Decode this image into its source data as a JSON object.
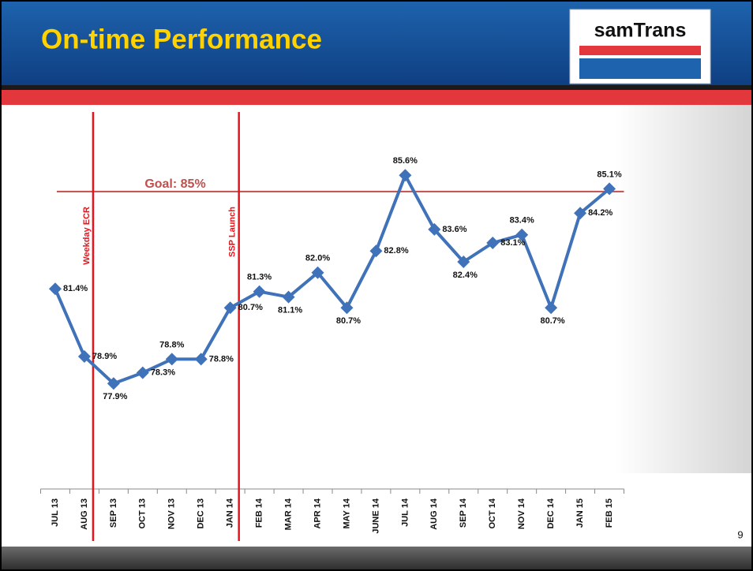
{
  "slide": {
    "logo": "samTrans",
    "page_number": "9"
  },
  "chart_data": {
    "type": "line",
    "title": "On-time Performance",
    "categories": [
      "JUL 13",
      "AUG 13",
      "SEP 13",
      "OCT 13",
      "NOV 13",
      "DEC 13",
      "JAN 14",
      "FEB 14",
      "MAR 14",
      "APR 14",
      "MAY 14",
      "JUNE 14",
      "JUL 14",
      "AUG 14",
      "SEP 14",
      "OCT 14",
      "NOV 14",
      "DEC 14",
      "JAN 15",
      "FEB 15"
    ],
    "values": [
      81.4,
      78.9,
      77.9,
      78.3,
      78.8,
      78.8,
      80.7,
      81.3,
      81.1,
      82.0,
      80.7,
      82.8,
      85.6,
      83.6,
      82.4,
      83.1,
      83.4,
      80.7,
      84.2,
      85.1
    ],
    "value_labels": [
      "81.4%",
      "78.9%",
      "77.9%",
      "78.3%",
      "78.8%",
      "78.8%",
      "80.7%",
      "81.3%",
      "81.1%",
      "82.0%",
      "80.7%",
      "82.8%",
      "85.6%",
      "83.6%",
      "82.4%",
      "83.1%",
      "83.4%",
      "80.7%",
      "84.2%",
      "85.1%"
    ],
    "color": "#3f72b8",
    "ylim": [
      74,
      88
    ],
    "goal": {
      "label": "Goal: 85%",
      "value": 85,
      "color": "#c0504d"
    },
    "events": [
      {
        "label": "Weekday ECR",
        "category": "AUG 13"
      },
      {
        "label": "SSP Launch",
        "category": "JAN 14"
      }
    ],
    "event_color": "#e8141b"
  }
}
